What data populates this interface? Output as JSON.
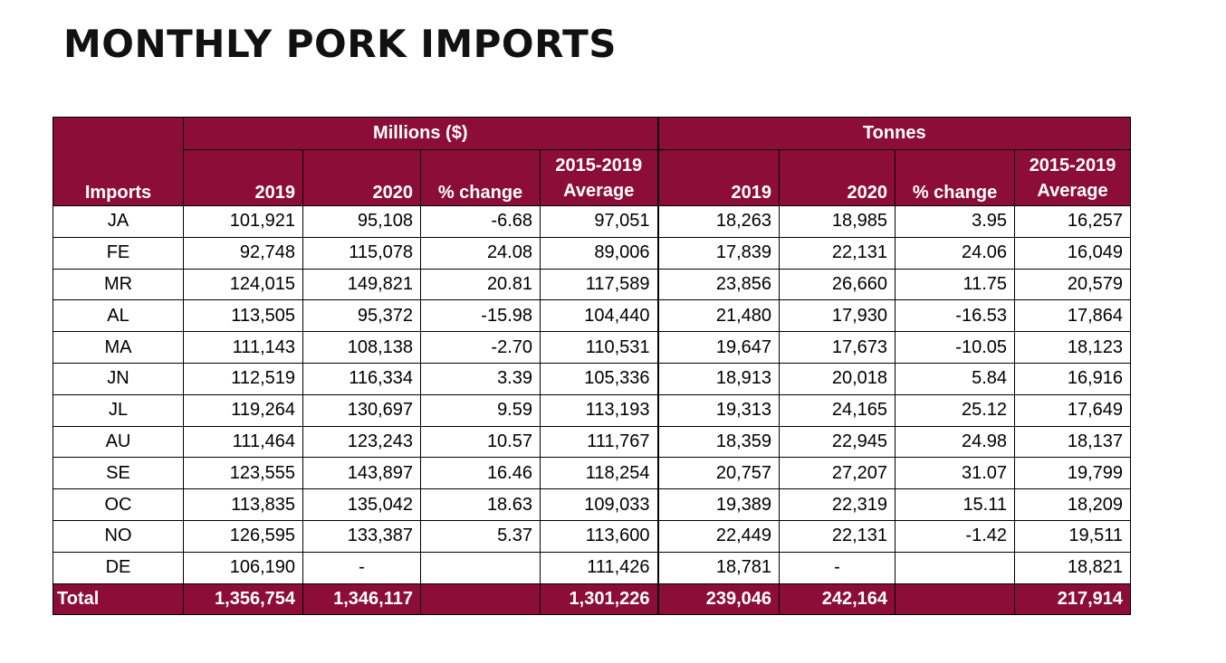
{
  "title": "MONTHLY PORK IMPORTS",
  "header": {
    "imports_label": "Imports",
    "group_millions": "Millions ($)",
    "group_tonnes": "Tonnes",
    "col_2019": "2019",
    "col_2020": "2020",
    "col_pct": "% change",
    "col_avg_line1": "2015-2019",
    "col_avg_line2": "Average"
  },
  "rows": [
    {
      "month": "JA",
      "m2019": "101,921",
      "m2020": "95,108",
      "mpct": "-6.68",
      "mavg": "97,051",
      "t2019": "18,263",
      "t2020": "18,985",
      "tpct": "3.95",
      "tavg": "16,257"
    },
    {
      "month": "FE",
      "m2019": "92,748",
      "m2020": "115,078",
      "mpct": "24.08",
      "mavg": "89,006",
      "t2019": "17,839",
      "t2020": "22,131",
      "tpct": "24.06",
      "tavg": "16,049"
    },
    {
      "month": "MR",
      "m2019": "124,015",
      "m2020": "149,821",
      "mpct": "20.81",
      "mavg": "117,589",
      "t2019": "23,856",
      "t2020": "26,660",
      "tpct": "11.75",
      "tavg": "20,579"
    },
    {
      "month": "AL",
      "m2019": "113,505",
      "m2020": "95,372",
      "mpct": "-15.98",
      "mavg": "104,440",
      "t2019": "21,480",
      "t2020": "17,930",
      "tpct": "-16.53",
      "tavg": "17,864"
    },
    {
      "month": "MA",
      "m2019": "111,143",
      "m2020": "108,138",
      "mpct": "-2.70",
      "mavg": "110,531",
      "t2019": "19,647",
      "t2020": "17,673",
      "tpct": "-10.05",
      "tavg": "18,123"
    },
    {
      "month": "JN",
      "m2019": "112,519",
      "m2020": "116,334",
      "mpct": "3.39",
      "mavg": "105,336",
      "t2019": "18,913",
      "t2020": "20,018",
      "tpct": "5.84",
      "tavg": "16,916"
    },
    {
      "month": "JL",
      "m2019": "119,264",
      "m2020": "130,697",
      "mpct": "9.59",
      "mavg": "113,193",
      "t2019": "19,313",
      "t2020": "24,165",
      "tpct": "25.12",
      "tavg": "17,649"
    },
    {
      "month": "AU",
      "m2019": "111,464",
      "m2020": "123,243",
      "mpct": "10.57",
      "mavg": "111,767",
      "t2019": "18,359",
      "t2020": "22,945",
      "tpct": "24.98",
      "tavg": "18,137"
    },
    {
      "month": "SE",
      "m2019": "123,555",
      "m2020": "143,897",
      "mpct": "16.46",
      "mavg": "118,254",
      "t2019": "20,757",
      "t2020": "27,207",
      "tpct": "31.07",
      "tavg": "19,799"
    },
    {
      "month": "OC",
      "m2019": "113,835",
      "m2020": "135,042",
      "mpct": "18.63",
      "mavg": "109,033",
      "t2019": "19,389",
      "t2020": "22,319",
      "tpct": "15.11",
      "tavg": "18,209"
    },
    {
      "month": "NO",
      "m2019": "126,595",
      "m2020": "133,387",
      "mpct": "5.37",
      "mavg": "113,600",
      "t2019": "22,449",
      "t2020": "22,131",
      "tpct": "-1.42",
      "tavg": "19,511"
    },
    {
      "month": "DE",
      "m2019": "106,190",
      "m2020": "-",
      "mpct": "",
      "mavg": "111,426",
      "t2019": "18,781",
      "t2020": "-",
      "tpct": "",
      "tavg": "18,821"
    }
  ],
  "total": {
    "label": "Total",
    "m2019": "1,356,754",
    "m2020": "1,346,117",
    "mpct": "",
    "mavg": "1,301,226",
    "t2019": "239,046",
    "t2020": "242,164",
    "tpct": "",
    "tavg": "217,914"
  },
  "colors": {
    "header_bg": "#8b0d38",
    "header_text": "#ffffff"
  }
}
